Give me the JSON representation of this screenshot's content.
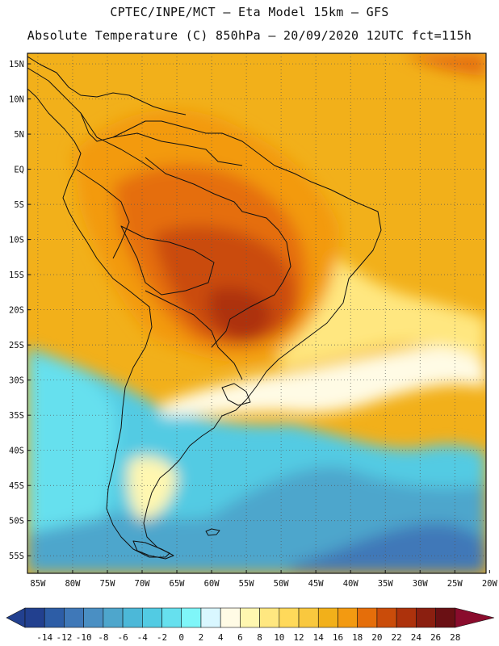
{
  "header": {
    "line1": "CPTEC/INPE/MCT –  Eta Model 15km – GFS",
    "line2": "Absolute Temperature (C) 850hPa – 20/09/2020 12UTC fct=115h"
  },
  "axes": {
    "lat_labels": [
      "15N",
      "10N",
      "5N",
      "EQ",
      "5S",
      "10S",
      "15S",
      "20S",
      "25S",
      "30S",
      "35S",
      "40S",
      "45S",
      "50S",
      "55S"
    ],
    "lat_values": [
      15,
      10,
      5,
      0,
      -5,
      -10,
      -15,
      -20,
      -25,
      -30,
      -35,
      -40,
      -45,
      -50,
      -55
    ],
    "lon_labels": [
      "85W",
      "80W",
      "75W",
      "70W",
      "65W",
      "60W",
      "55W",
      "50W",
      "45W",
      "40W",
      "35W",
      "30W",
      "25W",
      "20W"
    ],
    "lon_values": [
      -85,
      -80,
      -75,
      -70,
      -65,
      -60,
      -55,
      -50,
      -45,
      -40,
      -35,
      -30,
      -25,
      -20
    ],
    "lat_range": [
      -57.5,
      16.5
    ],
    "lon_range": [
      -86.5,
      -20.5
    ]
  },
  "colorbar": {
    "labels": [
      "-14",
      "-12",
      "-10",
      "-8",
      "-6",
      "-4",
      "-2",
      "0",
      "2",
      "4",
      "6",
      "8",
      "10",
      "12",
      "14",
      "16",
      "18",
      "20",
      "22",
      "24",
      "26",
      "28"
    ],
    "colors": [
      "#22408f",
      "#2d5da6",
      "#3f78b8",
      "#4a8fc3",
      "#4ea6cc",
      "#4cb8d8",
      "#52cbe3",
      "#66e0ee",
      "#7ff6f9",
      "#d9f7ff",
      "#fffbe5",
      "#fff7b0",
      "#ffe780",
      "#ffd95a",
      "#f9c83e",
      "#f2b01a",
      "#f39a11",
      "#e56e0a",
      "#ca4c0a",
      "#ad320c",
      "#8b1f10",
      "#6a1014",
      "#8a0c2d"
    ]
  },
  "colors": {
    "frame": "#111111",
    "grid": "#555555",
    "coast": "#111111"
  }
}
